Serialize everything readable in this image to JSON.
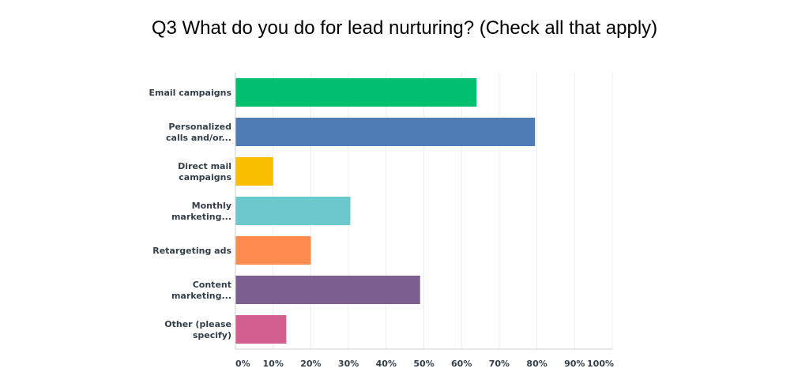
{
  "chart_data": {
    "type": "bar",
    "orientation": "horizontal",
    "title": "Q3 What do you do for lead nurturing? (Check all that apply)",
    "categories": [
      [
        "Email campaigns"
      ],
      [
        "Personalized",
        "calls and/or..."
      ],
      [
        "Direct mail",
        "campaigns"
      ],
      [
        "Monthly",
        "marketing..."
      ],
      [
        "Retargeting ads"
      ],
      [
        "Content",
        "marketing..."
      ],
      [
        "Other (please",
        "specify)"
      ]
    ],
    "values": [
      64,
      79.5,
      10,
      30.5,
      20,
      49,
      13.5
    ],
    "colors": [
      "#00bf6f",
      "#507cb6",
      "#f9be00",
      "#6bc8cd",
      "#ff8b4f",
      "#7d5e90",
      "#d25f90"
    ],
    "xlim": [
      0,
      100
    ],
    "xticks": [
      "0%",
      "10%",
      "20%",
      "30%",
      "40%",
      "50%",
      "60%",
      "70%",
      "80%",
      "90%",
      "100%"
    ],
    "grid": true,
    "legend": "none"
  }
}
